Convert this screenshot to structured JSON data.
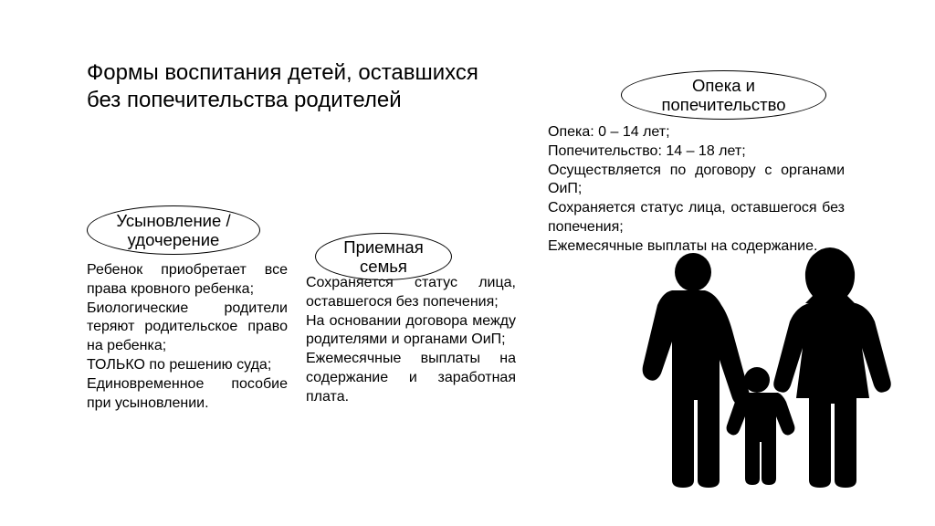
{
  "title": "Формы воспитания детей, оставшихся\nбез  попечительства родителей",
  "bubbles": {
    "adoption": "Усыновление / удочерение",
    "foster": "Приемная семья",
    "guardianship": "Опека и попечительство"
  },
  "bodies": {
    "adoption": "Ребенок приобретает все права кровного ребенка;\nБиологические родители теряют родительское право на ребенка;\nТОЛЬКО по решению суда;\nЕдиновременное пособие при усыновлении.",
    "foster": "Сохраняется статус лица, оставшегося без попечения;\nНа основании договора между родителями и органами ОиП;\nЕжемесячные выплаты на содержание и заработная плата.",
    "guardianship": "Опека: 0 – 14 лет;\nПопечительство: 14 – 18 лет;\nОсуществляется по договору с органами ОиП;\nСохраняется статус лица, оставшегося без попечения;\nЕжемесячные выплаты на содержание."
  },
  "styling": {
    "page_bg": "#ffffff",
    "text_color": "#000000",
    "title_fontsize": 24,
    "bubble_border": "#000000",
    "bubble_fontsize": 18.5,
    "body_fontsize": 16,
    "silhouette_color": "#000000"
  }
}
